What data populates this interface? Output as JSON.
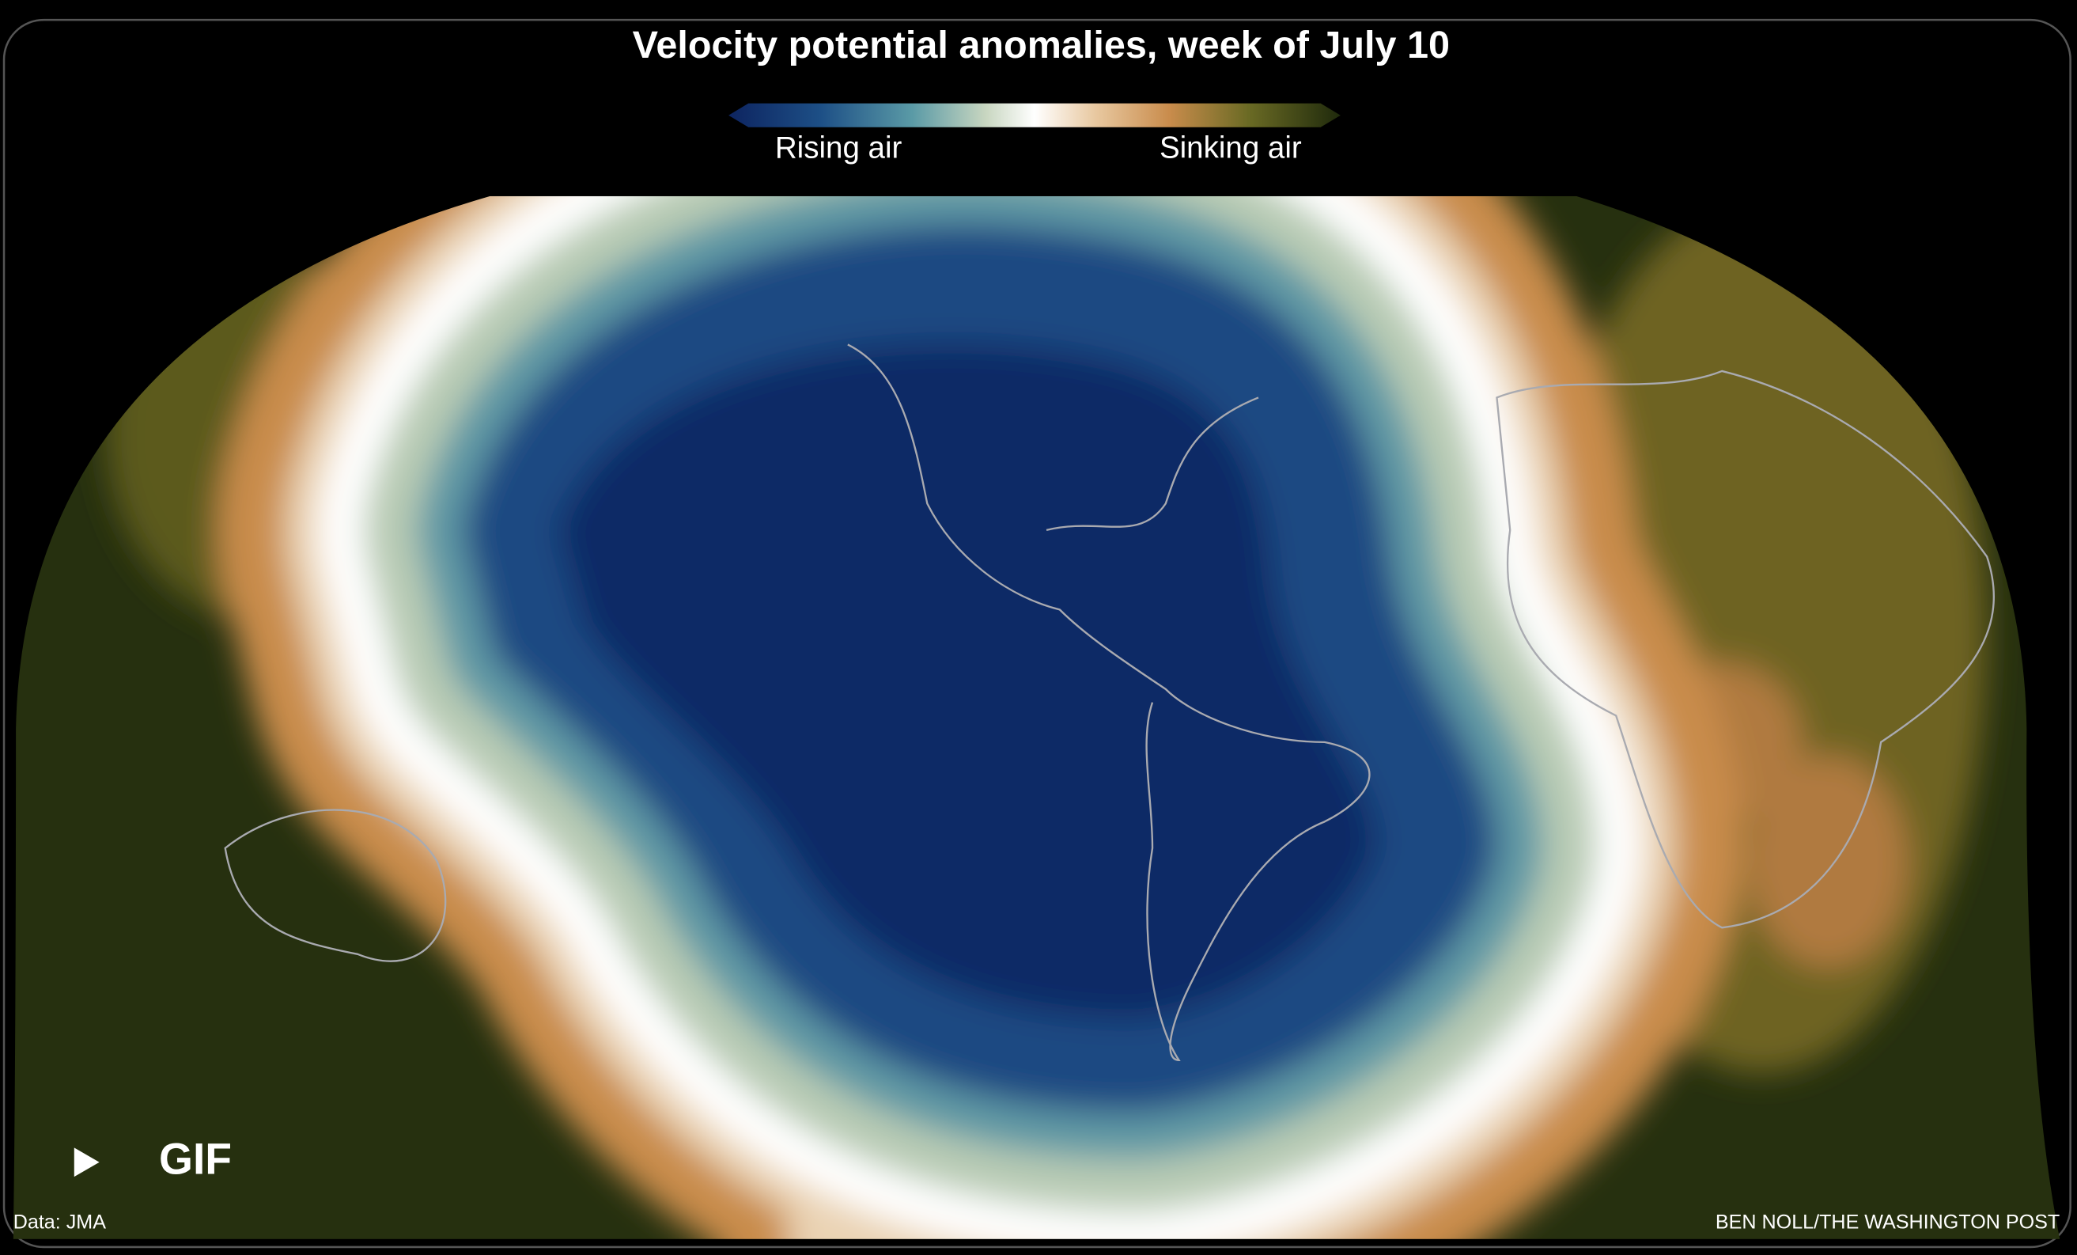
{
  "header": {
    "title": "Velocity potential anomalies, week of July 10"
  },
  "legend": {
    "low_label": "Rising air",
    "high_label": "Sinking air"
  },
  "player": {
    "label": "GIF"
  },
  "footer": {
    "source": "Data: JMA",
    "credit": "BEN NOLL/THE WASHINGTON POST"
  }
}
